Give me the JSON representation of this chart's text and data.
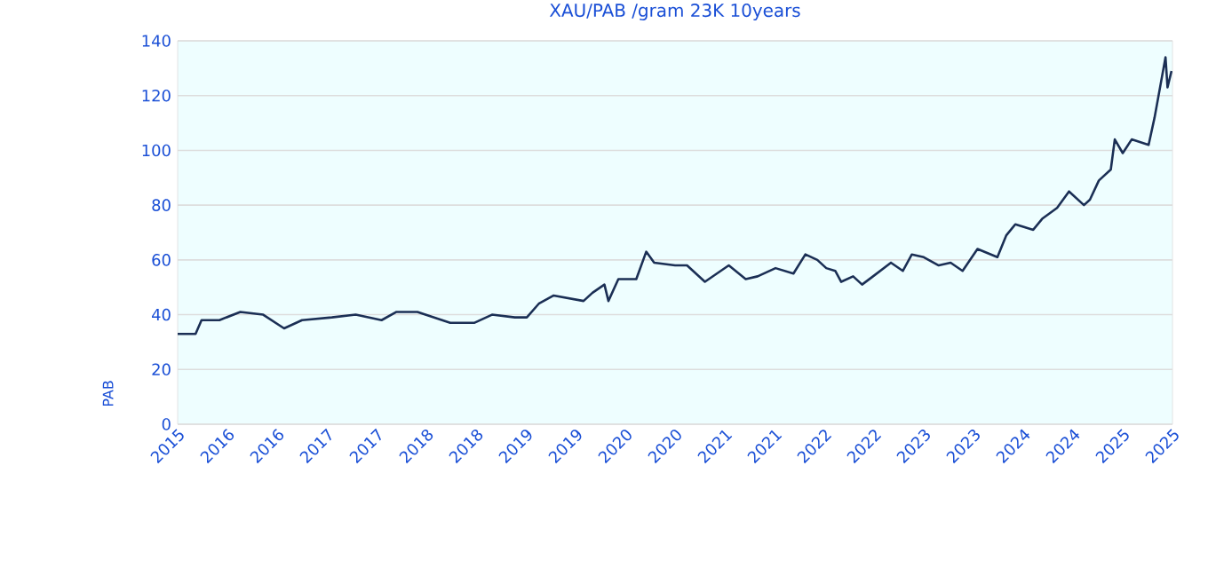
{
  "chart_data": {
    "type": "line",
    "title": "XAU/PAB /gram 23K 10years",
    "ylabel": "PAB",
    "xlim": [
      2015.5,
      2025.5
    ],
    "xticks": [
      {
        "value": 2015.5,
        "label": "2015"
      },
      {
        "value": 2016,
        "label": "2016"
      },
      {
        "value": 2016.5,
        "label": "2016"
      },
      {
        "value": 2017,
        "label": "2017"
      },
      {
        "value": 2017.5,
        "label": "2017"
      },
      {
        "value": 2018,
        "label": "2018"
      },
      {
        "value": 2018.5,
        "label": "2018"
      },
      {
        "value": 2019,
        "label": "2019"
      },
      {
        "value": 2019.5,
        "label": "2019"
      },
      {
        "value": 2020,
        "label": "2020"
      },
      {
        "value": 2020.5,
        "label": "2020"
      },
      {
        "value": 2021,
        "label": "2021"
      },
      {
        "value": 2021.5,
        "label": "2021"
      },
      {
        "value": 2022,
        "label": "2022"
      },
      {
        "value": 2022.5,
        "label": "2022"
      },
      {
        "value": 2023,
        "label": "2023"
      },
      {
        "value": 2023.5,
        "label": "2023"
      },
      {
        "value": 2024,
        "label": "2024"
      },
      {
        "value": 2024.5,
        "label": "2024"
      },
      {
        "value": 2025,
        "label": "2025"
      },
      {
        "value": 2025.5,
        "label": "2025"
      }
    ],
    "ylim": [
      0,
      140
    ],
    "yticks": [
      0,
      20,
      40,
      60,
      80,
      100,
      120,
      140
    ],
    "grid": "y",
    "marker": "none",
    "line_style": "solid",
    "series": [
      {
        "color": "#1b2f55",
        "x": [
          2015.5,
          2015.68,
          2015.74,
          2015.92,
          2016.13,
          2016.36,
          2016.57,
          2016.75,
          2017.05,
          2017.29,
          2017.55,
          2017.7,
          2017.91,
          2018.24,
          2018.48,
          2018.66,
          2018.89,
          2019.01,
          2019.13,
          2019.28,
          2019.58,
          2019.67,
          2019.79,
          2019.83,
          2019.93,
          2020.11,
          2020.21,
          2020.29,
          2020.5,
          2020.62,
          2020.8,
          2021.04,
          2021.21,
          2021.33,
          2021.51,
          2021.69,
          2021.81,
          2021.93,
          2022.02,
          2022.11,
          2022.17,
          2022.29,
          2022.38,
          2022.49,
          2022.67,
          2022.79,
          2022.88,
          2023.0,
          2023.15,
          2023.27,
          2023.39,
          2023.54,
          2023.74,
          2023.83,
          2023.92,
          2024.1,
          2024.19,
          2024.34,
          2024.46,
          2024.61,
          2024.67,
          2024.76,
          2024.88,
          2024.92,
          2025.0,
          2025.09,
          2025.26,
          2025.32,
          2025.38,
          2025.43,
          2025.45,
          2025.49
        ],
        "values": [
          33,
          33,
          38,
          38,
          41,
          40,
          35,
          38,
          39,
          40,
          38,
          41,
          41,
          37,
          37,
          40,
          39,
          39,
          44,
          47,
          45,
          48,
          51,
          45,
          53,
          53,
          63,
          59,
          58,
          58,
          52,
          58,
          53,
          54,
          57,
          55,
          62,
          60,
          57,
          56,
          52,
          54,
          51,
          54,
          59,
          56,
          62,
          61,
          58,
          59,
          56,
          64,
          61,
          69,
          73,
          71,
          75,
          79,
          85,
          80,
          82,
          89,
          93,
          104,
          99,
          104,
          102,
          112,
          124,
          134,
          123,
          129
        ]
      }
    ]
  }
}
